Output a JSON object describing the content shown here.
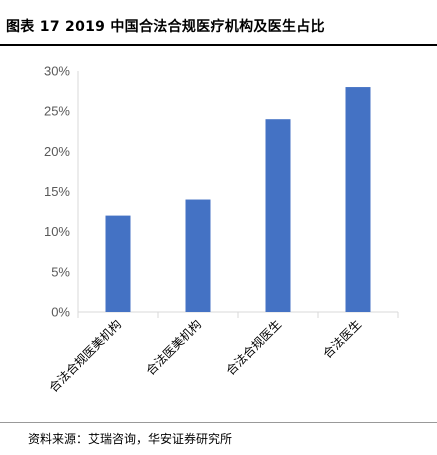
{
  "title": "图表 17 2019 中国合法合规医疗机构及医生占比",
  "source": "资料来源：艾瑞咨询，华安证券研究所",
  "colors": {
    "bar": "#4472C4",
    "axis": "#d9d9d9",
    "tick_text": "#595959"
  },
  "chart_data": {
    "type": "bar",
    "title": "",
    "xlabel": "",
    "ylabel": "",
    "categories": [
      "合法合规医美机构",
      "合法医美机构",
      "合法合规医生",
      "合法医生"
    ],
    "values": [
      12,
      14,
      24,
      28
    ],
    "ylim": [
      0,
      30
    ],
    "yticks": [
      0,
      5,
      10,
      15,
      20,
      25,
      30
    ],
    "ytick_labels": [
      "0%",
      "5%",
      "10%",
      "15%",
      "20%",
      "25%",
      "30%"
    ],
    "grid": false,
    "legend": "none"
  }
}
